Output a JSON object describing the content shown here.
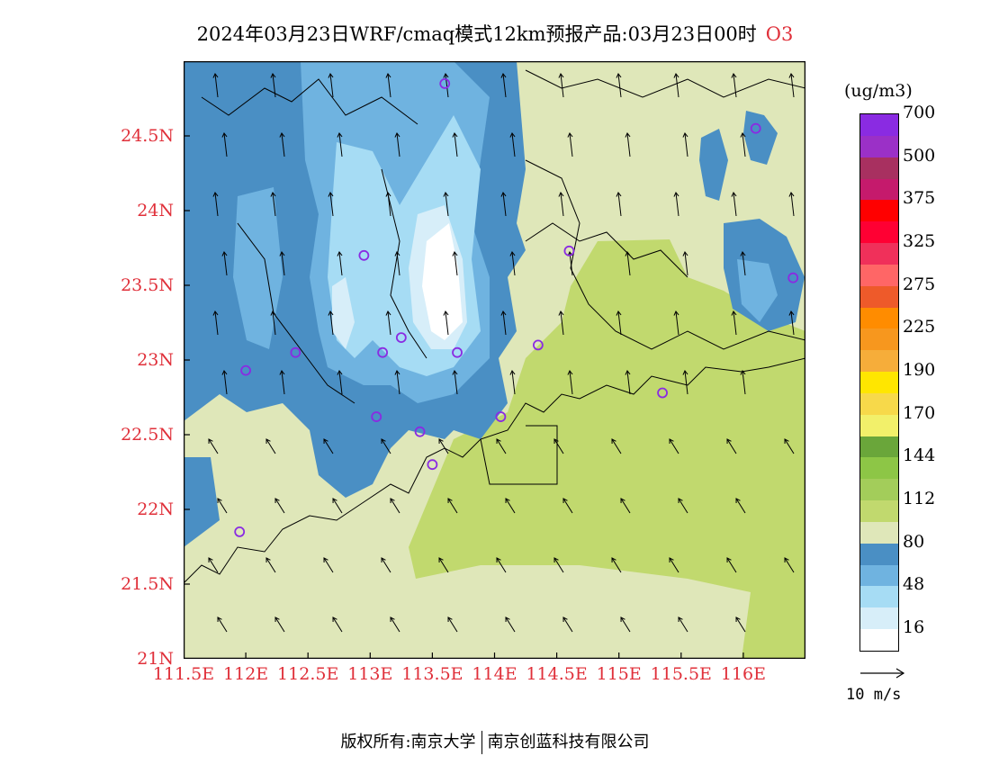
{
  "title": {
    "main": "2024年03月23日WRF/cmaq模式12km预报产品:03月23日00时",
    "species": "O3"
  },
  "axes": {
    "lat_labels": [
      "24.5N",
      "24N",
      "23.5N",
      "23N",
      "22.5N",
      "22N",
      "21.5N",
      "21N"
    ],
    "lon_labels": [
      "111.5E",
      "112E",
      "112.5E",
      "113E",
      "113.5E",
      "114E",
      "114.5E",
      "115E",
      "115.5E",
      "116E"
    ],
    "lon_range": [
      111.5,
      116.5
    ],
    "lat_range": [
      21.0,
      25.0
    ]
  },
  "legend": {
    "unit": "(ug/m3)",
    "colors": [
      "#ffffff",
      "#d7eef9",
      "#a6dcf4",
      "#6fb3e0",
      "#4a8fc4",
      "#dfe7b9",
      "#c1d96e",
      "#a3cd5a",
      "#8dc646",
      "#6aa63a",
      "#f2f06a",
      "#f7d94a",
      "#ffe600",
      "#f6ad3a",
      "#f7971e",
      "#ff8c00",
      "#ee5a2a",
      "#ff6666",
      "#f0305a",
      "#ff0033",
      "#ff0000",
      "#c51a6c",
      "#a83060",
      "#9b30c7",
      "#8a2be2"
    ],
    "labels": [
      "16",
      "48",
      "80",
      "112",
      "144",
      "170",
      "190",
      "225",
      "275",
      "325",
      "375",
      "500",
      "700"
    ]
  },
  "vector_key": {
    "label": "10 m/s"
  },
  "stations": [
    {
      "lon": 113.6,
      "lat": 24.85
    },
    {
      "lon": 116.1,
      "lat": 24.55
    },
    {
      "lon": 112.95,
      "lat": 23.7
    },
    {
      "lon": 114.6,
      "lat": 23.73
    },
    {
      "lon": 116.4,
      "lat": 23.55
    },
    {
      "lon": 112.4,
      "lat": 23.05
    },
    {
      "lon": 113.1,
      "lat": 23.05
    },
    {
      "lon": 113.25,
      "lat": 23.15
    },
    {
      "lon": 113.7,
      "lat": 23.05
    },
    {
      "lon": 114.35,
      "lat": 23.1
    },
    {
      "lon": 112.0,
      "lat": 22.93
    },
    {
      "lon": 115.35,
      "lat": 22.78
    },
    {
      "lon": 113.05,
      "lat": 22.62
    },
    {
      "lon": 113.4,
      "lat": 22.52
    },
    {
      "lon": 114.05,
      "lat": 22.62
    },
    {
      "lon": 113.5,
      "lat": 22.3
    },
    {
      "lon": 111.95,
      "lat": 21.85
    }
  ],
  "footer": {
    "left": "版权所有:南京大学",
    "right": "南京创蓝科技有限公司"
  }
}
